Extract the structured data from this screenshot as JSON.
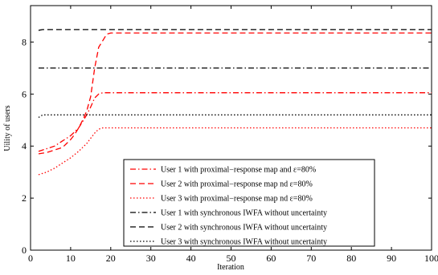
{
  "chart_data": {
    "type": "line",
    "xlabel": "Iteration",
    "ylabel": "Uility of users",
    "xlim": [
      0,
      100
    ],
    "ylim": [
      0,
      9.4
    ],
    "xticks": [
      0,
      10,
      20,
      30,
      40,
      50,
      60,
      70,
      80,
      90,
      100
    ],
    "yticks": [
      0,
      2,
      4,
      6,
      8
    ],
    "grid": false,
    "legend_position": "bottom-right",
    "series": [
      {
        "name": "User 1 with proximal−response map  and ε=80%",
        "color": "#ff0000",
        "dash": "dash-dot",
        "x": [
          2,
          3,
          4,
          6,
          7,
          8,
          9,
          10,
          11,
          12,
          13,
          14,
          15,
          16,
          17,
          18,
          19,
          20,
          100
        ],
        "y": [
          3.8,
          3.85,
          3.9,
          4.0,
          4.1,
          4.2,
          4.3,
          4.4,
          4.55,
          4.7,
          4.95,
          5.2,
          5.5,
          5.85,
          6.0,
          6.05,
          6.05,
          6.05,
          6.05
        ]
      },
      {
        "name": "User 2  with proximal−response map   nd ε=80%",
        "color": "#ff0000",
        "dash": "dash",
        "x": [
          2,
          4,
          6,
          8,
          9,
          10,
          11,
          12,
          13,
          14,
          15,
          16,
          17,
          18,
          19,
          20,
          100
        ],
        "y": [
          3.7,
          3.75,
          3.85,
          3.95,
          4.1,
          4.25,
          4.45,
          4.7,
          5.0,
          5.35,
          5.9,
          7.0,
          7.8,
          8.05,
          8.3,
          8.35,
          8.35
        ]
      },
      {
        "name": "User 3  with proximal−response map  nd ε=80%",
        "color": "#ff0000",
        "dash": "dot",
        "x": [
          2,
          4,
          6,
          8,
          10,
          12,
          14,
          15,
          16,
          17,
          18,
          19,
          100
        ],
        "y": [
          2.9,
          3.0,
          3.15,
          3.35,
          3.55,
          3.8,
          4.1,
          4.3,
          4.5,
          4.65,
          4.7,
          4.7,
          4.7
        ]
      },
      {
        "name": "User 1 with synchronous IWFA without uncertainty",
        "color": "#000000",
        "dash": "dash-dot",
        "x": [
          2,
          100
        ],
        "y": [
          7.0,
          7.0
        ]
      },
      {
        "name": "User 2  with synchronous IWFA without uncertainty",
        "color": "#000000",
        "dash": "dash",
        "x": [
          2,
          3,
          100
        ],
        "y": [
          8.45,
          8.48,
          8.48
        ]
      },
      {
        "name": "User 3  with synchronous IWFA without uncertainty",
        "color": "#000000",
        "dash": "dot",
        "x": [
          2,
          3,
          100
        ],
        "y": [
          5.1,
          5.2,
          5.2
        ]
      }
    ]
  }
}
